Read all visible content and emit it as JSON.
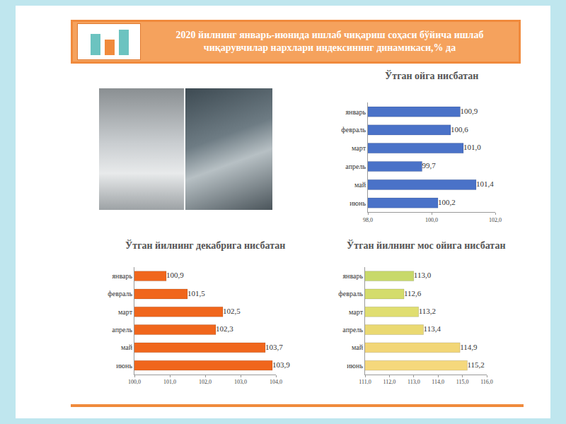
{
  "title": "2020 йилнинг январь-июнида ишлаб чиқариш соҳаси бўйича ишлаб чиқарувчилар нархлари индексининг динамикаси,% да",
  "chart_data": [
    {
      "type": "bar",
      "orientation": "horizontal",
      "title": "Ўтган ойга нисбатан",
      "categories": [
        "январь",
        "февраль",
        "март",
        "апрель",
        "май",
        "июнь"
      ],
      "values": [
        100.9,
        100.6,
        101.0,
        99.7,
        101.4,
        100.2
      ],
      "value_labels": [
        "100,9",
        "100,6",
        "101,0",
        "99,7",
        "101,4",
        "100,2"
      ],
      "color": "#4a72c8",
      "xlim": [
        98,
        102
      ],
      "xticks": [
        {
          "value": 98,
          "label": "98,0"
        },
        {
          "value": 100,
          "label": "100,0"
        },
        {
          "value": 102,
          "label": "102,0"
        }
      ],
      "grid": false,
      "data_labels": true
    },
    {
      "type": "bar",
      "orientation": "horizontal",
      "title": "Ўтган йилнинг декабрига нисбатан",
      "categories": [
        "январь",
        "февраль",
        "март",
        "апрель",
        "май",
        "июнь"
      ],
      "values": [
        100.9,
        101.5,
        102.5,
        102.3,
        103.7,
        103.9
      ],
      "value_labels": [
        "100,9",
        "101,5",
        "102,5",
        "102,3",
        "103,7",
        "103,9"
      ],
      "color": "#f0661c",
      "xlim": [
        100,
        104
      ],
      "xticks": [
        {
          "value": 100,
          "label": "100,0"
        },
        {
          "value": 101,
          "label": "101,0"
        },
        {
          "value": 102,
          "label": "102,0"
        },
        {
          "value": 103,
          "label": "103,0"
        },
        {
          "value": 104,
          "label": "104,0"
        }
      ],
      "grid": false,
      "data_labels": true
    },
    {
      "type": "bar",
      "orientation": "horizontal",
      "title": "Ўтган йилнинг мос ойига нисбатан",
      "categories": [
        "январь",
        "февраль",
        "март",
        "апрель",
        "май",
        "июнь"
      ],
      "values": [
        113.0,
        112.6,
        113.2,
        113.4,
        114.9,
        115.2
      ],
      "value_labels": [
        "113,0",
        "112,6",
        "113,2",
        "113,4",
        "114,9",
        "115,2"
      ],
      "colors": [
        "#c8d96a",
        "#d4dc6c",
        "#e0de70",
        "#ead972",
        "#f2d676",
        "#f5d87c"
      ],
      "xlim": [
        111,
        116
      ],
      "xticks": [
        {
          "value": 111,
          "label": "111,0"
        },
        {
          "value": 112,
          "label": "112,0"
        },
        {
          "value": 113,
          "label": "113,0"
        },
        {
          "value": 114,
          "label": "114,0"
        },
        {
          "value": 115,
          "label": "115,0"
        },
        {
          "value": 116,
          "label": "116,0"
        }
      ],
      "grid": false,
      "data_labels": true
    }
  ]
}
